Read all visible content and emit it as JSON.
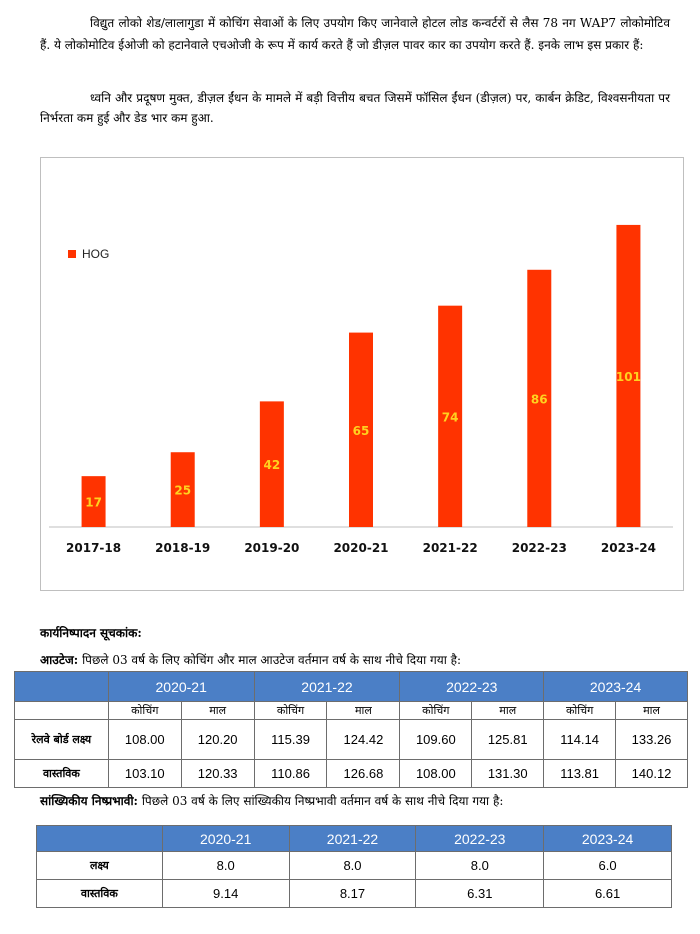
{
  "intro": {
    "para1": "विद्युत लोको शेड/लालागुडा में कोचिंग सेवाओं के लिए उपयोग किए जानेवाले होटल लोड कन्वर्टरों से लैस 78 नग WAP7 लोकोमोटिव हैं. ये लोकोमोटिव ईओजी को हटानेवाले एचओजी के रूप में कार्य करते हैं जो डीज़ल पावर कार का उपयोग करते हैं. इनके लाभ इस प्रकार हैं:",
    "para2": "ध्वनि और प्रदूषण मुक्त, डीज़ल ईंधन के मामले में बड़ी वित्तीय बचत जिसमें फॉसिल ईंधन (डीज़ल) पर, कार्बन क्रेडिट, विश्वसनीयता पर निर्भरता कम हुई और डेड भार कम हुआ."
  },
  "chart_data": {
    "type": "bar",
    "categories": [
      "2017-18",
      "2018-19",
      "2019-20",
      "2020-21",
      "2021-22",
      "2022-23",
      "2023-24"
    ],
    "series": [
      {
        "name": "HOG",
        "values": [
          17,
          25,
          42,
          65,
          74,
          86,
          101
        ],
        "color": "#ff3300"
      }
    ],
    "legend_position": "left",
    "ylim": [
      0,
      110
    ],
    "grid": false,
    "label_color": "#ffd21f"
  },
  "kpi": {
    "heading": "कार्यनिष्पादन सूचकांक:",
    "outage_title": "आउटेज:",
    "outage_text": "पिछले 03 वर्ष के लिए कोचिंग और माल आउटेज वर्तमान वर्ष के साथ नीचे दिया गया है:",
    "outage_table": {
      "years": [
        "2020-21",
        "2021-22",
        "2022-23",
        "2023-24"
      ],
      "sub_cols": [
        "कोचिंग",
        "माल"
      ],
      "rows": [
        {
          "label": "रेलवे बोर्ड लक्ष्य",
          "values": [
            "108.00",
            "120.20",
            "115.39",
            "124.42",
            "109.60",
            "125.81",
            "114.14",
            "133.26"
          ]
        },
        {
          "label": "वास्तविक",
          "values": [
            "103.10",
            "120.33",
            "110.86",
            "126.68",
            "108.00",
            "131.30",
            "113.81",
            "140.12"
          ]
        }
      ]
    },
    "stat_title": "सांख्यिकीय निष्प्रभावी:",
    "stat_text": "पिछले 03 वर्ष के लिए सांख्यिकीय निष्प्रभावी वर्तमान वर्ष के साथ नीचे दिया गया है:",
    "stat_table": {
      "years": [
        "2020-21",
        "2021-22",
        "2022-23",
        "2023-24"
      ],
      "rows": [
        {
          "label": "लक्ष्य",
          "values": [
            "8.0",
            "8.0",
            "8.0",
            "6.0"
          ]
        },
        {
          "label": "वास्तविक",
          "values": [
            "9.14",
            "8.17",
            "6.31",
            "6.61"
          ]
        }
      ]
    }
  }
}
